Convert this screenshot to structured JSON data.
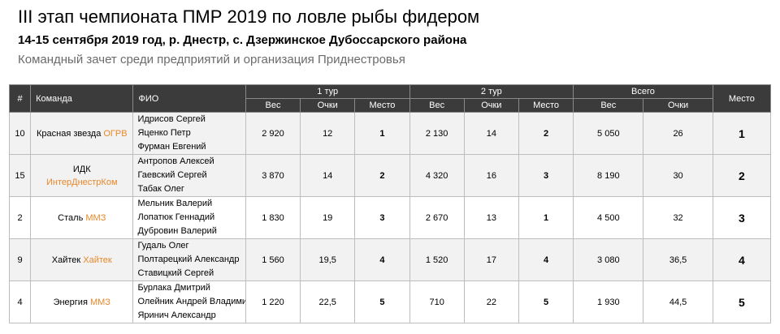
{
  "header": {
    "title": "III этап чемпионата ПМР 2019 по ловле рыбы фидером",
    "subtitle": "14-15 сентября 2019 год, р. Днестр, с. Дзержинское Дубоссарского района",
    "description": "Командный зачет среди предприятий и организация Приднестровья"
  },
  "table": {
    "columns": {
      "num": "#",
      "team": "Команда",
      "fio": "ФИО",
      "tour1": "1 тур",
      "tour2": "2 тур",
      "total": "Всего",
      "place": "Место",
      "weight": "Вес",
      "points": "Очки",
      "tour_place": "Место"
    },
    "rows": [
      {
        "num": "10",
        "team": "Красная звезда",
        "org": "ОГРВ",
        "members": [
          "Идрисов Сергей",
          "Яценко Петр",
          "Фурман Евгений"
        ],
        "t1_weight": "2 920",
        "t1_points": "12",
        "t1_place": "1",
        "t2_weight": "2 130",
        "t2_points": "14",
        "t2_place": "2",
        "total_weight": "5 050",
        "total_points": "26",
        "place": "1"
      },
      {
        "num": "15",
        "team": "ИДК",
        "org": "ИнтерДнестрКом",
        "members": [
          "Антропов Алексей",
          "Гаевский Сергей",
          "Табак Олег"
        ],
        "t1_weight": "3 870",
        "t1_points": "14",
        "t1_place": "2",
        "t2_weight": "4 320",
        "t2_points": "16",
        "t2_place": "3",
        "total_weight": "8 190",
        "total_points": "30",
        "place": "2"
      },
      {
        "num": "2",
        "team": "Сталь",
        "org": "ММЗ",
        "members": [
          "Мельник Валерий",
          "Лопатюк Геннадий",
          "Дубровин Валерий"
        ],
        "t1_weight": "1 830",
        "t1_points": "19",
        "t1_place": "3",
        "t2_weight": "2 670",
        "t2_points": "13",
        "t2_place": "1",
        "total_weight": "4 500",
        "total_points": "32",
        "place": "3"
      },
      {
        "num": "9",
        "team": "Хайтек",
        "org": "Хайтек",
        "members": [
          "Гудаль Олег",
          "Полтарецкий Александр",
          "Ставицкий Сергей"
        ],
        "t1_weight": "1 560",
        "t1_points": "19,5",
        "t1_place": "4",
        "t2_weight": "1 520",
        "t2_points": "17",
        "t2_place": "4",
        "total_weight": "3 080",
        "total_points": "36,5",
        "place": "4"
      },
      {
        "num": "4",
        "team": "Энергия",
        "org": "ММЗ",
        "members": [
          "Бурлака Дмитрий",
          "Олейник Андрей Владимирович",
          "Яринич Александр"
        ],
        "t1_weight": "1 220",
        "t1_points": "22,5",
        "t1_place": "5",
        "t2_weight": "710",
        "t2_points": "22",
        "t2_place": "5",
        "total_weight": "1 930",
        "total_points": "44,5",
        "place": "5"
      }
    ]
  }
}
